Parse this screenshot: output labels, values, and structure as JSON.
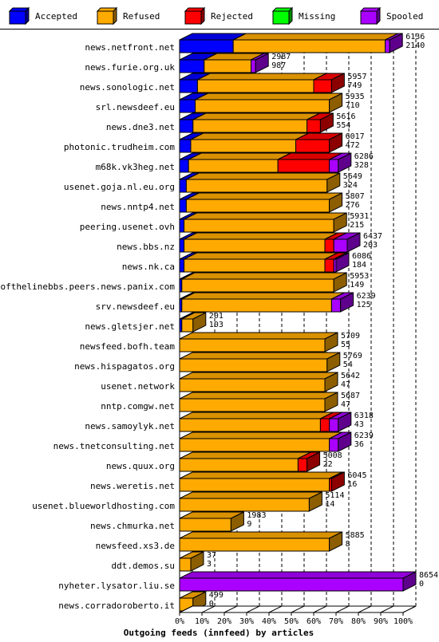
{
  "chart_data": {
    "type": "bar",
    "orientation": "horizontal",
    "stacked": true,
    "three_d": true,
    "title": "Outgoing feeds (innfeed) by articles",
    "legend": [
      {
        "name": "Accepted",
        "color": "#0000ff"
      },
      {
        "name": "Refused",
        "color": "#ffaa00"
      },
      {
        "name": "Rejected",
        "color": "#ff0000"
      },
      {
        "name": "Missing",
        "color": "#00ff00"
      },
      {
        "name": "Spooled",
        "color": "#aa00ff"
      }
    ],
    "legend_position": "top",
    "x_axis": {
      "ticks": [
        "0%",
        "10%",
        "20%",
        "30%",
        "40%",
        "50%",
        "60%",
        "70%",
        "80%",
        "90%",
        "100%"
      ],
      "xlim": [
        0,
        100
      ],
      "unit": "%"
    },
    "grid": "vertical dashed",
    "categories": [
      "news.netfront.net",
      "news.furie.org.uk",
      "news.sonologic.net",
      "srl.newsdeef.eu",
      "news.dne3.net",
      "photonic.trudheim.com",
      "m68k.vk3heg.net",
      "usenet.goja.nl.eu.org",
      "news.nntp4.net",
      "peering.usenet.ovh",
      "news.bbs.nz",
      "news.nk.ca",
      "endofthelinebbs.peers.news.panix.com",
      "srv.newsdeef.eu",
      "news.gletsjer.net",
      "newsfeed.bofh.team",
      "news.hispagatos.org",
      "usenet.network",
      "nntp.comgw.net",
      "news.samoylyk.net",
      "news.tnetconsulting.net",
      "news.quux.org",
      "news.weretis.net",
      "usenet.blueworldhosting.com",
      "news.chmurka.net",
      "newsfeed.xs3.de",
      "ddt.demos.su",
      "nyheter.lysator.liu.se",
      "news.corradoroberto.it"
    ],
    "series": [
      {
        "name": "Accepted",
        "values": [
          24,
          11,
          8,
          7,
          6,
          5,
          4,
          3,
          3,
          2,
          2,
          2,
          1,
          1,
          1,
          0,
          0,
          0,
          0,
          0,
          0,
          0,
          0,
          0,
          0,
          0,
          0,
          0,
          0
        ]
      },
      {
        "name": "Refused",
        "values": [
          68,
          21,
          52,
          60,
          51,
          47,
          40,
          63,
          64,
          67,
          63,
          63,
          68,
          67,
          5,
          65,
          66,
          65,
          65,
          63,
          67,
          53,
          67,
          58,
          23,
          67,
          5,
          0,
          6
        ]
      },
      {
        "name": "Rejected",
        "values": [
          0,
          0,
          8,
          0,
          6,
          15,
          23,
          0,
          0,
          0,
          4,
          4,
          0,
          0,
          0,
          0,
          0,
          0,
          0,
          4,
          0,
          4,
          1,
          0,
          0,
          0,
          0,
          0,
          0
        ]
      },
      {
        "name": "Missing",
        "values": [
          0,
          0,
          0,
          0,
          0,
          0,
          0,
          0,
          0,
          0,
          0,
          0,
          0,
          0,
          0,
          0,
          0,
          0,
          0,
          0,
          0,
          0,
          0,
          0,
          0,
          0,
          0,
          0,
          0
        ]
      },
      {
        "name": "Spooled",
        "values": [
          2,
          2,
          0,
          0,
          0,
          0,
          4,
          0,
          0,
          0,
          6,
          1,
          0,
          4,
          0,
          0,
          0,
          0,
          0,
          4,
          4,
          0,
          0,
          0,
          0,
          0,
          0,
          100,
          0
        ]
      }
    ],
    "value_labels": [
      [
        "6136",
        "2140"
      ],
      [
        "2987",
        "987"
      ],
      [
        "5957",
        "749"
      ],
      [
        "5935",
        "710"
      ],
      [
        "5616",
        "554"
      ],
      [
        "6017",
        "472"
      ],
      [
        "6286",
        "328"
      ],
      [
        "5649",
        "324"
      ],
      [
        "5807",
        "276"
      ],
      [
        "5931",
        "215"
      ],
      [
        "6437",
        "203"
      ],
      [
        "6086",
        "184"
      ],
      [
        "5953",
        "149"
      ],
      [
        "6239",
        "125"
      ],
      [
        "201",
        "103"
      ],
      [
        "5709",
        "55"
      ],
      [
        "5769",
        "54"
      ],
      [
        "5642",
        "47"
      ],
      [
        "5687",
        "47"
      ],
      [
        "6318",
        "43"
      ],
      [
        "6239",
        "36"
      ],
      [
        "5008",
        "22"
      ],
      [
        "6045",
        "16"
      ],
      [
        "5114",
        "14"
      ],
      [
        "1983",
        "9"
      ],
      [
        "5885",
        "8"
      ],
      [
        "37",
        "3"
      ],
      [
        "8654",
        "0"
      ],
      [
        "499",
        "0"
      ]
    ]
  }
}
